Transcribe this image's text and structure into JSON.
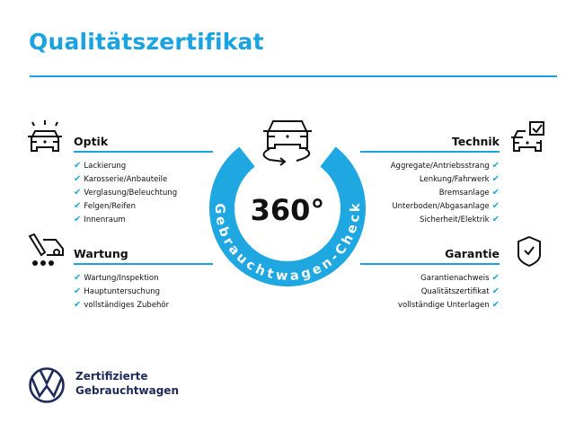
{
  "title": "Qualitätszertifikat",
  "colors": {
    "accent": "#1aa3e0",
    "brand_dark": "#1e2a5a"
  },
  "center": {
    "degrees": "360°",
    "ring_text": "Gebrauchtwagen-Check",
    "icon": "car-rotate-icon"
  },
  "sections": {
    "optik": {
      "heading": "Optik",
      "icon": "car-lights-icon",
      "items": [
        "Lackierung",
        "Karosserie/Anbauteile",
        "Verglasung/Beleuchtung",
        "Felgen/Reifen",
        "Innenraum"
      ]
    },
    "wartung": {
      "heading": "Wartung",
      "icon": "service-tools-icon",
      "items": [
        "Wartung/Inspektion",
        "Hauptuntersuchung",
        "vollständiges Zubehör"
      ]
    },
    "technik": {
      "heading": "Technik",
      "icon": "car-checkbox-icon",
      "items": [
        "Aggregate/Antriebsstrang",
        "Lenkung/Fahrwerk",
        "Bremsanlage",
        "Unterboden/Abgasanlage",
        "Sicherheit/Elektrik"
      ]
    },
    "garantie": {
      "heading": "Garantie",
      "icon": "shield-check-icon",
      "items": [
        "Garantienachweis",
        "Qualitätszertifikat",
        "vollständige Unterlagen"
      ]
    }
  },
  "check_mark": "✔",
  "footer": {
    "line1": "Zertifizierte",
    "line2": "Gebrauchtwagen",
    "logo": "vw-logo"
  }
}
